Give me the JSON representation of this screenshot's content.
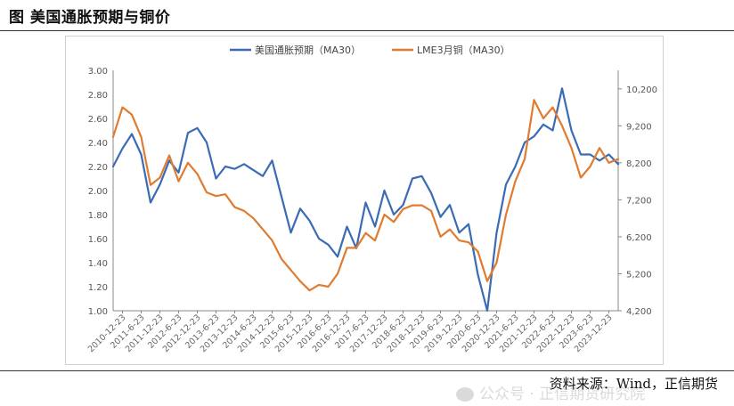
{
  "figure": {
    "title": "图 美国通胀预期与铜价",
    "source": "资料来源：Wind，正信期货",
    "watermark": "公众号 · 正信期货研究院"
  },
  "chart_data": {
    "type": "line",
    "grid": false,
    "legend_position": "top",
    "x_ticks": [
      "2010-12-23",
      "2011-6-23",
      "2011-12-23",
      "2012-6-23",
      "2012-12-23",
      "2013-6-23",
      "2013-12-23",
      "2014-6-23",
      "2014-12-23",
      "2015-6-23",
      "2015-12-23",
      "2016-6-23",
      "2016-12-23",
      "2017-6-23",
      "2017-12-23",
      "2018-6-23",
      "2018-12-23",
      "2019-6-23",
      "2019-12-23",
      "2020-6-23",
      "2020-12-23",
      "2021-6-23",
      "2021-12-23",
      "2022-6-23",
      "2022-12-23",
      "2023-6-23",
      "2023-12-23"
    ],
    "y_left": {
      "range": [
        1.0,
        3.0
      ],
      "ticks": [
        "1.00",
        "1.20",
        "1.40",
        "1.60",
        "1.80",
        "2.00",
        "2.20",
        "2.40",
        "2.60",
        "2.80",
        "3.00"
      ]
    },
    "y_right": {
      "range": [
        4200,
        10700
      ],
      "ticks": [
        "4,200",
        "5,200",
        "6,200",
        "7,200",
        "8,200",
        "9,200",
        "10,200"
      ]
    },
    "series": [
      {
        "name": "美国通胀预期（MA30）",
        "axis": "left",
        "color": "#3a6bb5",
        "values": [
          2.2,
          2.35,
          2.47,
          2.3,
          1.9,
          2.05,
          2.25,
          2.15,
          2.48,
          2.52,
          2.4,
          2.1,
          2.2,
          2.18,
          2.22,
          2.17,
          2.12,
          2.25,
          1.95,
          1.65,
          1.85,
          1.75,
          1.6,
          1.55,
          1.45,
          1.7,
          1.52,
          1.9,
          1.7,
          2.0,
          1.8,
          1.88,
          2.1,
          2.12,
          1.98,
          1.78,
          1.88,
          1.65,
          1.72,
          1.3,
          1.0,
          1.65,
          2.05,
          2.2,
          2.4,
          2.45,
          2.55,
          2.5,
          2.85,
          2.5,
          2.3,
          2.3,
          2.25,
          2.3,
          2.22
        ]
      },
      {
        "name": "LME3月铜（MA30）",
        "axis": "right",
        "color": "#e07b30",
        "values": [
          8900,
          9700,
          9500,
          8900,
          7600,
          7800,
          8400,
          7700,
          8200,
          7900,
          7400,
          7300,
          7350,
          7000,
          6900,
          6700,
          6400,
          6100,
          5600,
          5300,
          5000,
          4750,
          4900,
          4850,
          5200,
          5900,
          5900,
          6300,
          6100,
          6800,
          6600,
          6950,
          7050,
          7050,
          6900,
          6200,
          6400,
          6100,
          6050,
          5800,
          5000,
          5500,
          6800,
          7700,
          8300,
          9900,
          9400,
          9700,
          9200,
          8600,
          7800,
          8100,
          8600,
          8200,
          8300
        ]
      }
    ]
  }
}
